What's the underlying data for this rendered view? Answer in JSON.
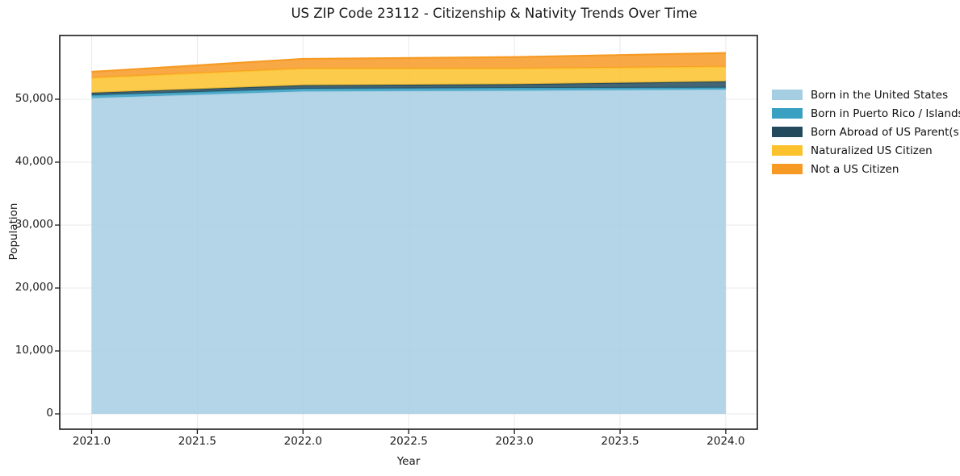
{
  "chart_data": {
    "type": "area",
    "stacked": true,
    "title": "US ZIP Code 23112 - Citizenship & Nativity Trends Over Time",
    "xlabel": "Year",
    "ylabel": "Population",
    "x": [
      2021,
      2022,
      2023,
      2024
    ],
    "series": [
      {
        "name": "Born in the United States",
        "color": "#a6cee3",
        "values": [
          50200,
          51250,
          51370,
          51540
        ]
      },
      {
        "name": "Born in Puerto Rico / Islands",
        "color": "#3aa0c1",
        "values": [
          430,
          420,
          420,
          300
        ]
      },
      {
        "name": "Born Abroad of US Parent(s)",
        "color": "#234a5c",
        "values": [
          400,
          550,
          600,
          990
        ]
      },
      {
        "name": "Naturalized US Citizen",
        "color": "#fcc22d",
        "values": [
          2370,
          2650,
          2480,
          2350
        ]
      },
      {
        "name": "Not a US Citizen",
        "color": "#f79a24",
        "values": [
          960,
          1540,
          1830,
          2170
        ]
      }
    ],
    "x_tick_values": [
      2021.0,
      2021.5,
      2022.0,
      2022.5,
      2023.0,
      2023.5,
      2024.0
    ],
    "x_tick_labels": [
      "2021.0",
      "2021.5",
      "2022.0",
      "2022.5",
      "2023.0",
      "2023.5",
      "2024.0"
    ],
    "y_tick_values": [
      0,
      10000,
      20000,
      30000,
      40000,
      50000
    ],
    "y_tick_labels": [
      "0",
      "10,000",
      "20,000",
      "30,000",
      "40,000",
      "50,000"
    ],
    "ylim": [
      -2400,
      60100
    ],
    "xlim": [
      2020.85,
      2024.15
    ],
    "grid": true,
    "legend_position": "right",
    "fill_opacity": 0.85,
    "grid_color": "#e9e9e9",
    "axis_color": "#1a1a1a"
  }
}
